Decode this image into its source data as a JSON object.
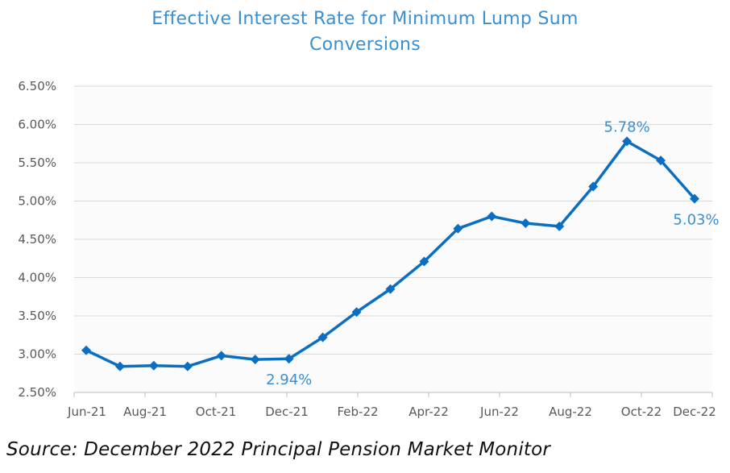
{
  "chart_data": {
    "type": "line",
    "title_line1": "Effective Interest Rate for Minimum Lump Sum",
    "title_line2": "Conversions",
    "xlabel": "",
    "ylabel": "",
    "x_tick_labels": [
      "Jun-21",
      "Aug-21",
      "Oct-21",
      "Dec-21",
      "Feb-22",
      "Apr-22",
      "Jun-22",
      "Aug-22",
      "Oct-22",
      "Dec-22"
    ],
    "y_tick_labels": [
      "2.50%",
      "3.00%",
      "3.50%",
      "4.00%",
      "4.50%",
      "5.00%",
      "5.50%",
      "6.00%",
      "6.50%"
    ],
    "ylim": [
      2.5,
      6.5
    ],
    "y_step": 0.5,
    "grid": true,
    "legend": "none",
    "series": [
      {
        "color": "#0a6fc2",
        "marker": "diamond",
        "x": [
          "Jun-21",
          "Jul-21",
          "Aug-21",
          "Sep-21",
          "Oct-21",
          "Nov-21",
          "Dec-21",
          "Jan-22",
          "Feb-22",
          "Mar-22",
          "Apr-22",
          "May-22",
          "Jun-22",
          "Jul-22",
          "Aug-22",
          "Sep-22",
          "Oct-22",
          "Nov-22",
          "Dec-22"
        ],
        "values": [
          3.05,
          2.84,
          2.85,
          2.84,
          2.98,
          2.93,
          2.94,
          3.22,
          3.55,
          3.85,
          4.21,
          4.64,
          4.8,
          4.71,
          4.67,
          5.19,
          5.78,
          5.53,
          5.03
        ]
      }
    ],
    "annotations": [
      {
        "text": "2.94%",
        "point_index": 6,
        "position": "below"
      },
      {
        "text": "5.78%",
        "point_index": 16,
        "position": "above"
      },
      {
        "text": "5.03%",
        "point_index": 18,
        "position": "below"
      }
    ]
  },
  "source_text": "Source: December 2022 Principal Pension Market Monitor"
}
